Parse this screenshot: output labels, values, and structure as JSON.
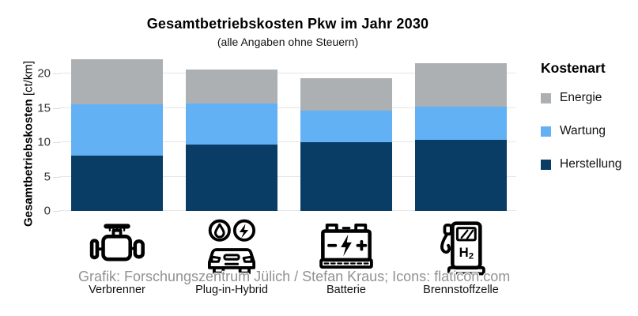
{
  "title": "Gesamtbetriebskosten Pkw im Jahr 2030",
  "subtitle": "(alle Angaben ohne Steuern)",
  "y_axis": {
    "label_bold": "Gesamtbetriebskosten",
    "label_unit": " [ct/km]",
    "ticks": [
      0,
      5,
      10,
      15,
      20
    ]
  },
  "legend": {
    "title": "Kostenart",
    "items": [
      {
        "label": "Energie",
        "color": "#adb0b3"
      },
      {
        "label": "Wartung",
        "color": "#63b1f5"
      },
      {
        "label": "Herstellung",
        "color": "#0a3d66"
      }
    ]
  },
  "credit": "Grafik: Forschungszentrum Jülich / Stefan Kraus; Icons: flaticon.com",
  "h2_label": "H2",
  "chart_data": {
    "type": "bar",
    "stacked": true,
    "title": "Gesamtbetriebskosten Pkw im Jahr 2030",
    "subtitle": "(alle Angaben ohne Steuern)",
    "ylabel": "Gesamtbetriebskosten [ct/km]",
    "xlabel": "",
    "categories": [
      "Verbrenner",
      "Plug-in-Hybrid",
      "Batterie",
      "Brennstoffzelle"
    ],
    "series": [
      {
        "name": "Herstellung",
        "color": "#0a3d66",
        "values": [
          8.1,
          9.7,
          10.0,
          10.3
        ]
      },
      {
        "name": "Wartung",
        "color": "#63b1f5",
        "values": [
          7.4,
          5.9,
          4.6,
          4.9
        ]
      },
      {
        "name": "Energie",
        "color": "#adb0b3",
        "values": [
          6.6,
          5.0,
          4.7,
          6.3
        ]
      }
    ],
    "totals": [
      22.1,
      20.6,
      19.3,
      21.5
    ],
    "yticks": [
      0,
      5,
      10,
      15,
      20
    ],
    "ylim": [
      0,
      23.8
    ],
    "grid": true,
    "legend_title": "Kostenart",
    "legend_position": "right",
    "icons": [
      "engine-icon",
      "hybrid-car-icon",
      "car-battery-icon",
      "h2-fuel-pump-icon"
    ]
  }
}
